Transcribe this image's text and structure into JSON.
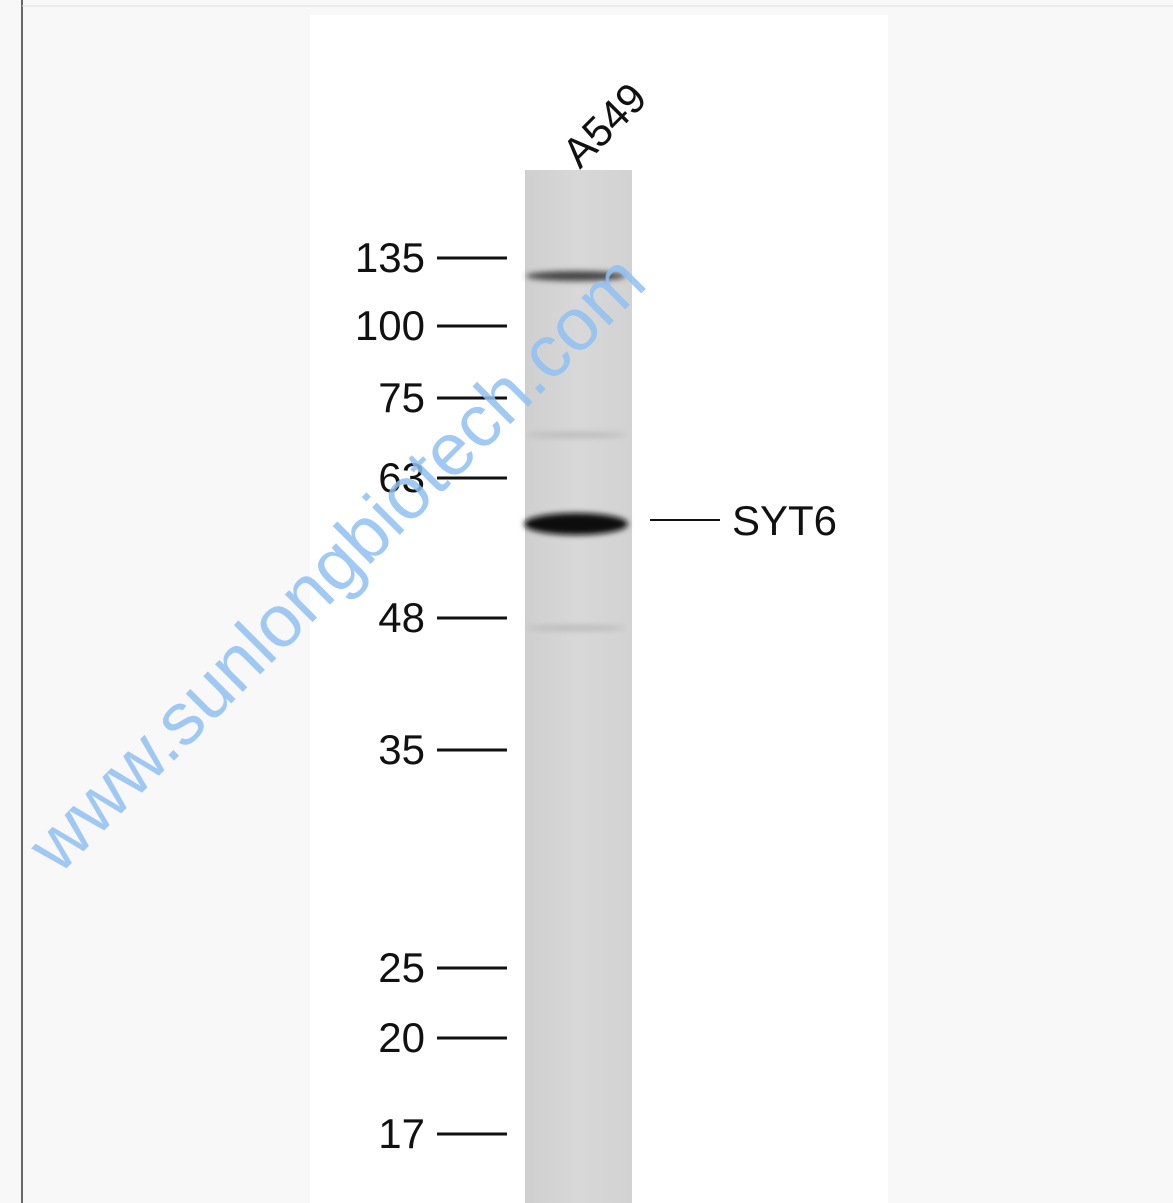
{
  "figure": {
    "lane_label": "A549",
    "markers": [
      135,
      100,
      75,
      63,
      48,
      35,
      25,
      20,
      17
    ],
    "band_label": "SYT6",
    "watermark": "www.sunlongbiotech.com"
  }
}
